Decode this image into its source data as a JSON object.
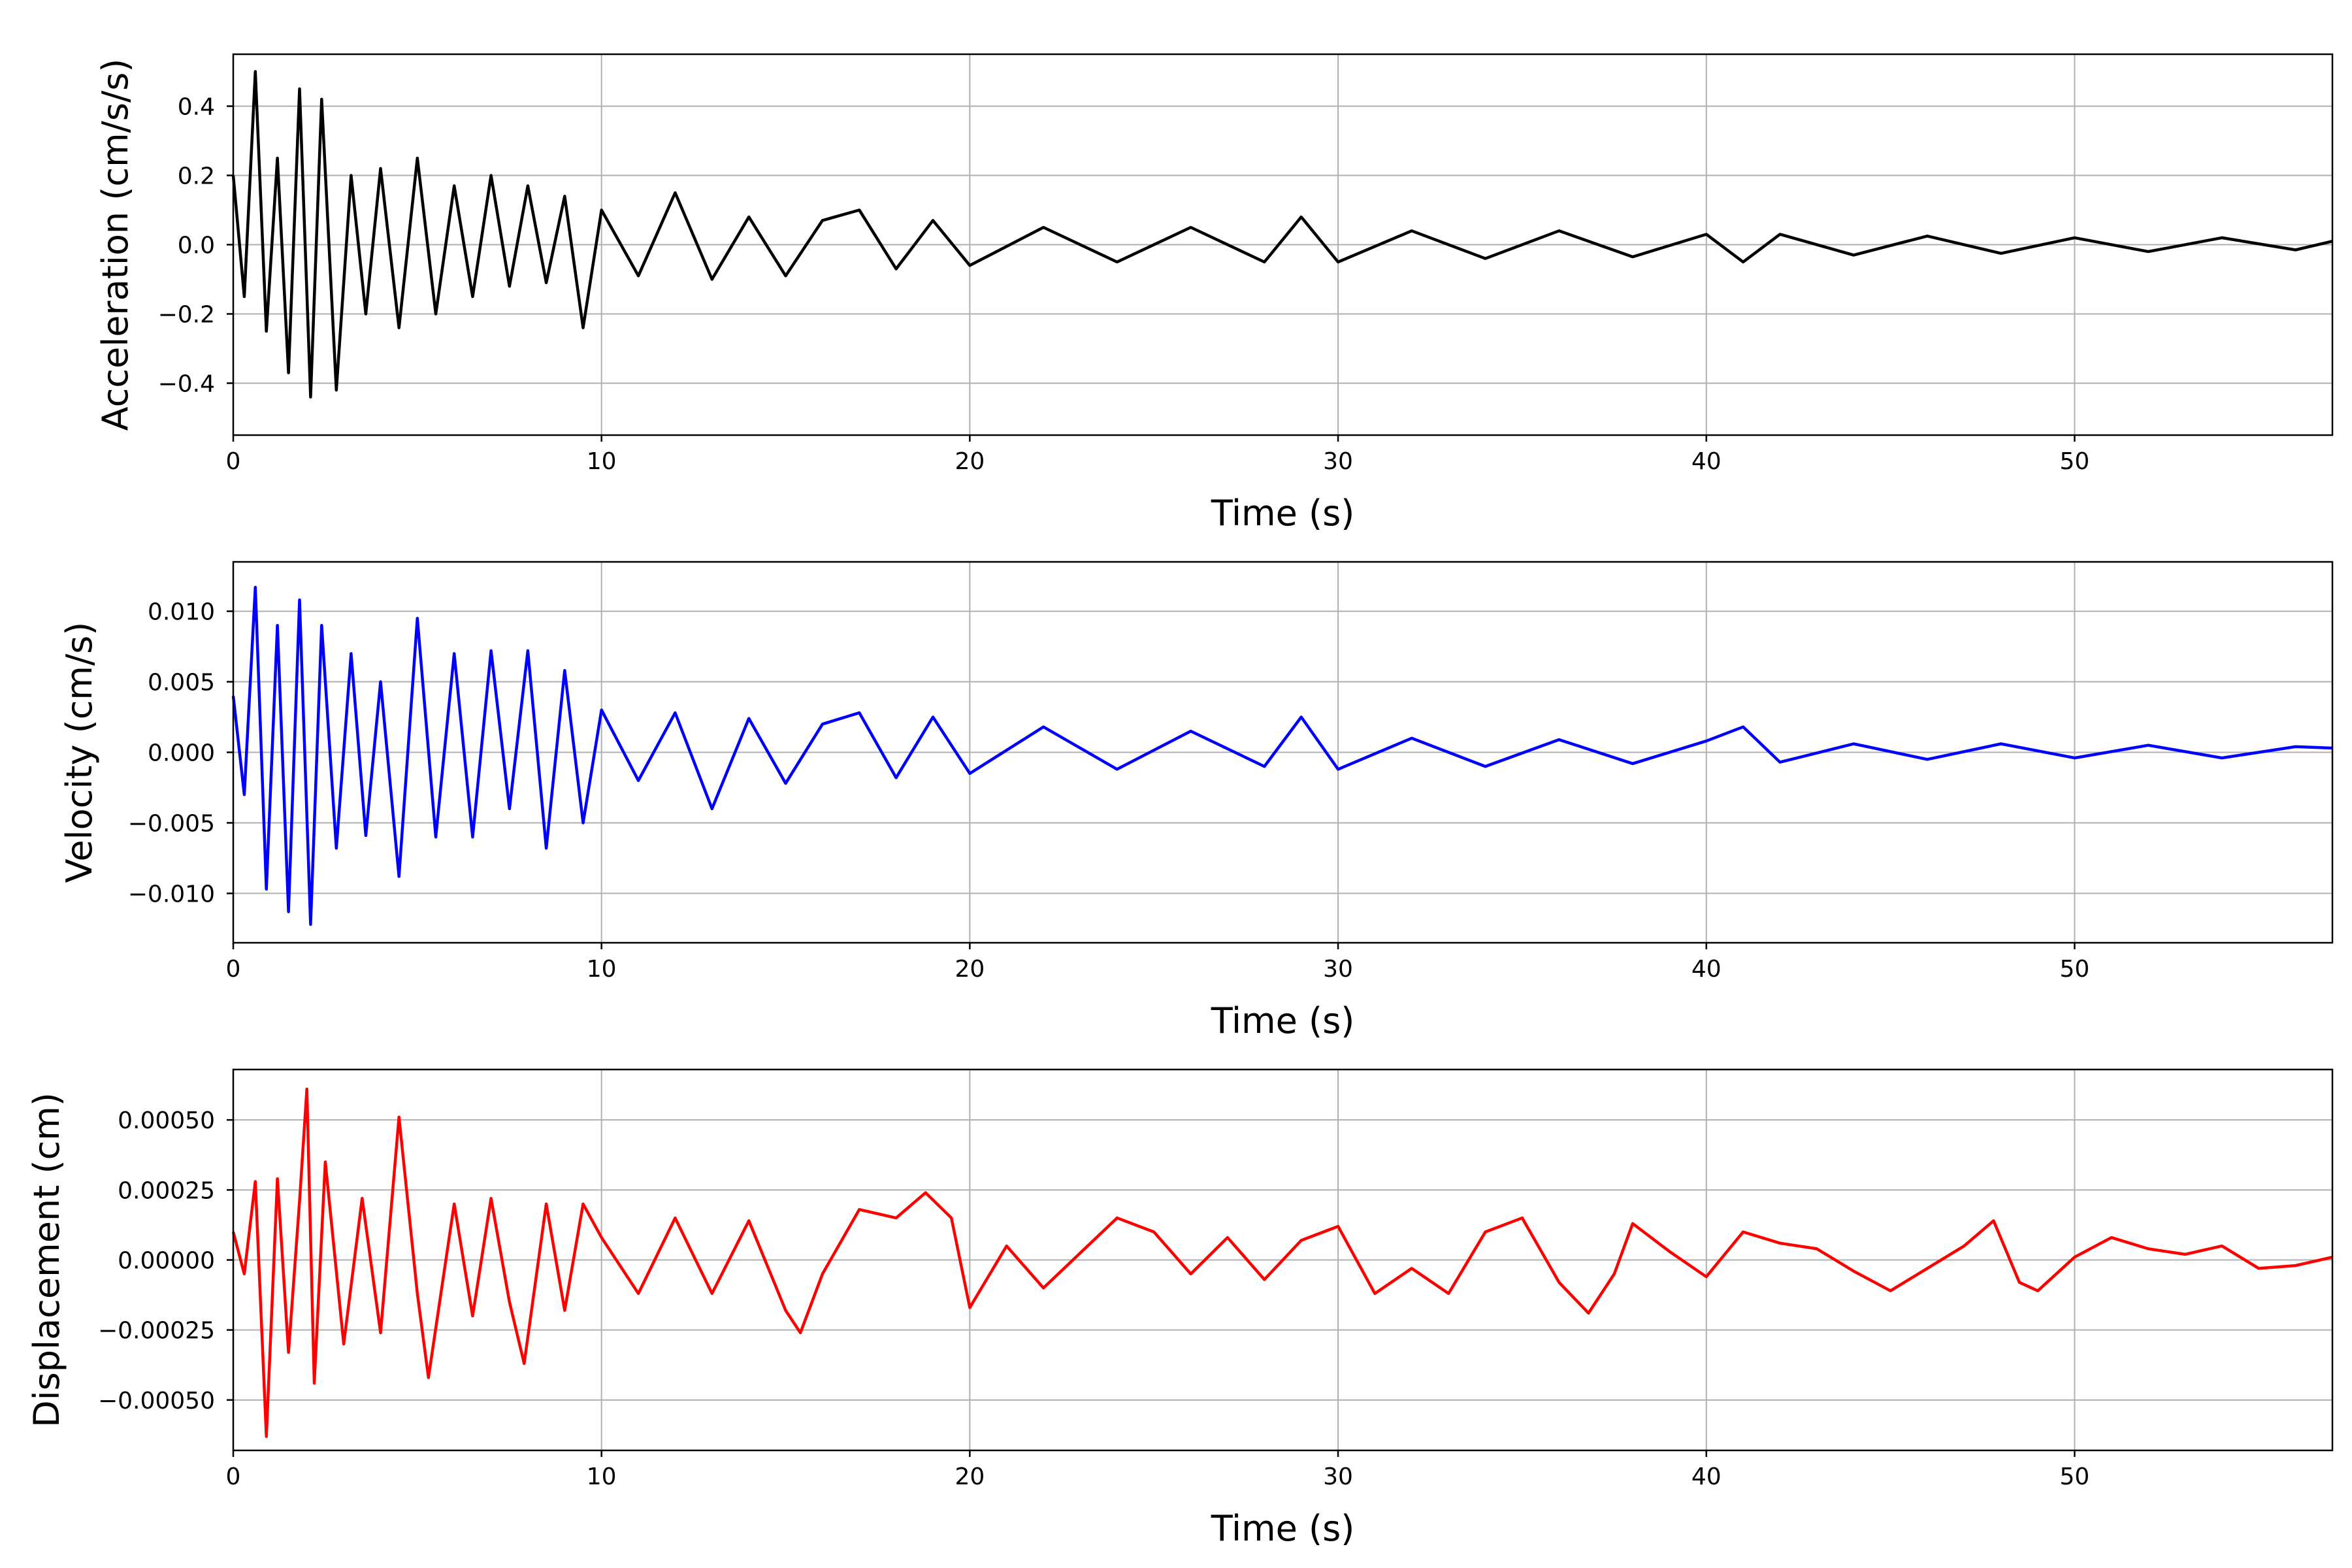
{
  "chart_data": [
    {
      "type": "line",
      "title": "",
      "xlabel": "Time (s)",
      "ylabel": "Acceleration (cm/s/s)",
      "xlim": [
        0,
        57
      ],
      "ylim": [
        -0.55,
        0.55
      ],
      "xticks": [
        0,
        10,
        20,
        30,
        40,
        50
      ],
      "xtick_labels": [
        "0",
        "10",
        "20",
        "30",
        "40",
        "50"
      ],
      "yticks": [
        0.4,
        0.2,
        0.0,
        -0.2,
        -0.4
      ],
      "ytick_labels": [
        "0.4",
        "0.2",
        "0.0",
        "−0.2",
        "−0.4"
      ],
      "grid": true,
      "color": "#000000",
      "series": [
        {
          "x": [
            0,
            0.3,
            0.6,
            0.9,
            1.2,
            1.5,
            1.8,
            2.1,
            2.4,
            2.8,
            3.2,
            3.6,
            4.0,
            4.5,
            5.0,
            5.5,
            6.0,
            6.5,
            7.0,
            7.5,
            8.0,
            8.5,
            9.0,
            9.5,
            10,
            11,
            12,
            13,
            14,
            15,
            16,
            17,
            18,
            19,
            20,
            22,
            24,
            26,
            28,
            29,
            30,
            32,
            34,
            36,
            38,
            40,
            41,
            42,
            44,
            46,
            48,
            50,
            52,
            54,
            56,
            57
          ],
          "values": [
            0.2,
            -0.15,
            0.5,
            -0.25,
            0.25,
            -0.37,
            0.45,
            -0.44,
            0.42,
            -0.42,
            0.2,
            -0.2,
            0.22,
            -0.24,
            0.25,
            -0.2,
            0.17,
            -0.15,
            0.2,
            -0.12,
            0.17,
            -0.11,
            0.14,
            -0.24,
            0.1,
            -0.09,
            0.15,
            -0.1,
            0.08,
            -0.09,
            0.07,
            0.1,
            -0.07,
            0.07,
            -0.06,
            0.05,
            -0.05,
            0.05,
            -0.05,
            0.08,
            -0.05,
            0.04,
            -0.04,
            0.04,
            -0.035,
            0.03,
            -0.05,
            0.03,
            -0.03,
            0.025,
            -0.025,
            0.02,
            -0.02,
            0.02,
            -0.015,
            0.01
          ]
        }
      ]
    },
    {
      "type": "line",
      "title": "",
      "xlabel": "Time (s)",
      "ylabel": "Velocity (cm/s)",
      "xlim": [
        0,
        57
      ],
      "ylim": [
        -0.0135,
        0.0135
      ],
      "xticks": [
        0,
        10,
        20,
        30,
        40,
        50
      ],
      "xtick_labels": [
        "0",
        "10",
        "20",
        "30",
        "40",
        "50"
      ],
      "yticks": [
        0.01,
        0.005,
        0.0,
        -0.005,
        -0.01
      ],
      "ytick_labels": [
        "0.010",
        "0.005",
        "0.000",
        "−0.005",
        "−0.010"
      ],
      "grid": true,
      "color": "#0000ff",
      "series": [
        {
          "x": [
            0,
            0.3,
            0.6,
            0.9,
            1.2,
            1.5,
            1.8,
            2.1,
            2.4,
            2.8,
            3.2,
            3.6,
            4.0,
            4.5,
            5.0,
            5.5,
            6.0,
            6.5,
            7.0,
            7.5,
            8.0,
            8.5,
            9.0,
            9.5,
            10,
            11,
            12,
            13,
            14,
            15,
            16,
            17,
            18,
            19,
            20,
            22,
            24,
            26,
            28,
            29,
            30,
            32,
            34,
            36,
            38,
            40,
            41,
            42,
            44,
            46,
            48,
            50,
            52,
            54,
            56,
            57
          ],
          "values": [
            0.004,
            -0.003,
            0.0117,
            -0.0097,
            0.009,
            -0.0113,
            0.0108,
            -0.0122,
            0.009,
            -0.0068,
            0.007,
            -0.0059,
            0.005,
            -0.0088,
            0.0095,
            -0.006,
            0.007,
            -0.006,
            0.0072,
            -0.004,
            0.0072,
            -0.0068,
            0.0058,
            -0.005,
            0.003,
            -0.002,
            0.0028,
            -0.004,
            0.0024,
            -0.0022,
            0.002,
            0.0028,
            -0.0018,
            0.0025,
            -0.0015,
            0.0018,
            -0.0012,
            0.0015,
            -0.001,
            0.0025,
            -0.0012,
            0.001,
            -0.001,
            0.0009,
            -0.0008,
            0.0008,
            0.0018,
            -0.0007,
            0.0006,
            -0.0005,
            0.0006,
            -0.0004,
            0.0005,
            -0.0004,
            0.0004,
            0.0003
          ]
        }
      ]
    },
    {
      "type": "line",
      "title": "",
      "xlabel": "Time (s)",
      "ylabel": "Displacement (cm)",
      "xlim": [
        0,
        57
      ],
      "ylim": [
        -0.00068,
        0.00068
      ],
      "xticks": [
        0,
        10,
        20,
        30,
        40,
        50
      ],
      "xtick_labels": [
        "0",
        "10",
        "20",
        "30",
        "40",
        "50"
      ],
      "yticks": [
        0.0005,
        0.00025,
        0.0,
        -0.00025,
        -0.0005
      ],
      "ytick_labels": [
        "0.00050",
        "0.00025",
        "0.00000",
        "−0.00025",
        "−0.00050"
      ],
      "grid": true,
      "color": "#ff0000",
      "series": [
        {
          "x": [
            0,
            0.3,
            0.6,
            0.9,
            1.2,
            1.5,
            1.8,
            2.0,
            2.2,
            2.5,
            3.0,
            3.5,
            4.0,
            4.5,
            5.0,
            5.3,
            6.0,
            6.5,
            7.0,
            7.5,
            7.9,
            8.5,
            9.0,
            9.5,
            10,
            11,
            12,
            13,
            14,
            15,
            15.4,
            16,
            17,
            18,
            18.8,
            19.5,
            20,
            21,
            22,
            24,
            25,
            26,
            27,
            28,
            29,
            30,
            31,
            32,
            33,
            34,
            35,
            36,
            36.8,
            37.5,
            38,
            39,
            40,
            41,
            42,
            43,
            44,
            45,
            46,
            47,
            47.8,
            48.5,
            49,
            50,
            51,
            52,
            53,
            54,
            55,
            56,
            57
          ],
          "values": [
            0.0001,
            -5e-05,
            0.00028,
            -0.00063,
            0.00029,
            -0.00033,
            0.00021,
            0.00061,
            -0.00044,
            0.00035,
            -0.0003,
            0.00022,
            -0.00026,
            0.00051,
            -0.00012,
            -0.00042,
            0.0002,
            -0.0002,
            0.00022,
            -0.00015,
            -0.00037,
            0.0002,
            -0.00018,
            0.0002,
            8e-05,
            -0.00012,
            0.00015,
            -0.00012,
            0.00014,
            -0.00018,
            -0.00026,
            -5e-05,
            0.00018,
            0.00015,
            0.00024,
            0.00015,
            -0.00017,
            5e-05,
            -0.0001,
            0.00015,
            0.0001,
            -5e-05,
            8e-05,
            -7e-05,
            7e-05,
            0.00012,
            -0.00012,
            -3e-05,
            -0.00012,
            0.0001,
            0.00015,
            -8e-05,
            -0.00019,
            -5e-05,
            0.00013,
            3e-05,
            -6e-05,
            0.0001,
            6e-05,
            4e-05,
            -4e-05,
            -0.00011,
            -3e-05,
            5e-05,
            0.00014,
            -8e-05,
            -0.00011,
            1e-05,
            8e-05,
            4e-05,
            2e-05,
            5e-05,
            -3e-05,
            -2e-05,
            1e-05
          ]
        }
      ]
    }
  ]
}
